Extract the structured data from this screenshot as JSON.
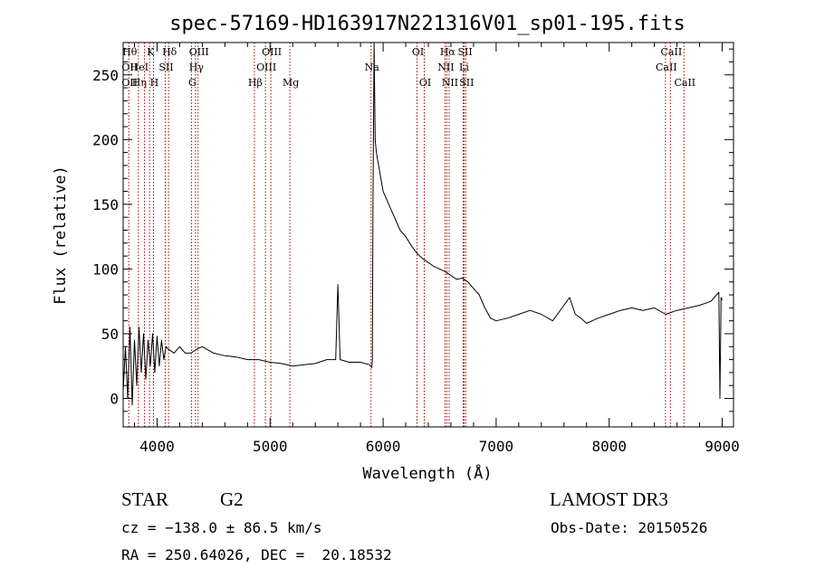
{
  "chart_data": {
    "type": "line",
    "title": "spec-57169-HD163917N221316V01_sp01-195.fits",
    "xlabel": "Wavelength (Å)",
    "ylabel": "Flux (relative)",
    "xlim": [
      3700,
      9100
    ],
    "ylim": [
      -22,
      275
    ],
    "xticks": [
      4000,
      5000,
      6000,
      7000,
      8000,
      9000
    ],
    "yticks": [
      0,
      50,
      100,
      150,
      200,
      250
    ],
    "grid": false,
    "line_color": "#000000",
    "marker_color": "#aa0000",
    "series": [
      {
        "x": [
          3700,
          3720,
          3740,
          3760,
          3780,
          3800,
          3820,
          3840,
          3860,
          3880,
          3900,
          3920,
          3940,
          3960,
          3980,
          4000,
          4020,
          4040,
          4060,
          4080,
          4100,
          4150,
          4200,
          4250,
          4300,
          4350,
          4400,
          4500,
          4600,
          4700,
          4800,
          4900,
          5000,
          5100,
          5200,
          5300,
          5400,
          5500,
          5550,
          5580,
          5600,
          5620,
          5700,
          5800,
          5880,
          5900,
          5905,
          5910,
          5920,
          5930,
          5940,
          5950,
          5960,
          5980,
          6000,
          6050,
          6100,
          6150,
          6200,
          6250,
          6300,
          6350,
          6400,
          6450,
          6500,
          6550,
          6600,
          6650,
          6700,
          6750,
          6800,
          6850,
          6900,
          6950,
          7000,
          7100,
          7200,
          7300,
          7400,
          7500,
          7600,
          7650,
          7700,
          7750,
          7800,
          7900,
          8000,
          8100,
          8200,
          8300,
          8400,
          8500,
          8600,
          8700,
          8800,
          8900,
          8950,
          8970,
          8980,
          8990,
          9000
        ],
        "y": [
          5,
          40,
          0,
          55,
          -5,
          45,
          10,
          55,
          20,
          50,
          15,
          45,
          25,
          50,
          20,
          48,
          25,
          45,
          30,
          40,
          38,
          35,
          40,
          35,
          35,
          38,
          40,
          35,
          33,
          32,
          30,
          30,
          28,
          27,
          25,
          26,
          27,
          30,
          30,
          30,
          88,
          30,
          28,
          28,
          26,
          24,
          30,
          140,
          275,
          200,
          190,
          185,
          180,
          170,
          160,
          150,
          140,
          130,
          125,
          118,
          112,
          108,
          105,
          102,
          100,
          98,
          95,
          92,
          93,
          90,
          85,
          80,
          70,
          62,
          60,
          62,
          65,
          68,
          65,
          60,
          72,
          78,
          65,
          62,
          58,
          62,
          65,
          68,
          70,
          68,
          70,
          65,
          68,
          70,
          72,
          75,
          80,
          82,
          0,
          78,
          76
        ]
      }
    ],
    "line_markers": [
      {
        "x": 3750,
        "labels": [
          "Hθ",
          "OII",
          "OII"
        ],
        "rows": [
          0,
          1,
          2
        ]
      },
      {
        "x": 3835,
        "labels": [
          "Hη",
          "HeI"
        ],
        "rows": [
          2,
          1
        ]
      },
      {
        "x": 3889,
        "labels": [],
        "rows": []
      },
      {
        "x": 3934,
        "labels": [
          "K"
        ],
        "rows": [
          0
        ]
      },
      {
        "x": 3968,
        "labels": [
          "H"
        ],
        "rows": [
          2
        ]
      },
      {
        "x": 4072,
        "labels": [
          "SII"
        ],
        "rows": [
          1
        ]
      },
      {
        "x": 4102,
        "labels": [
          "Hδ"
        ],
        "rows": [
          0
        ]
      },
      {
        "x": 4304,
        "labels": [
          "G"
        ],
        "rows": [
          2
        ]
      },
      {
        "x": 4340,
        "labels": [
          "Hγ"
        ],
        "rows": [
          1
        ]
      },
      {
        "x": 4363,
        "labels": [
          "OIII"
        ],
        "rows": [
          0
        ]
      },
      {
        "x": 4861,
        "labels": [
          "Hβ"
        ],
        "rows": [
          2
        ]
      },
      {
        "x": 4959,
        "labels": [
          "OIII"
        ],
        "rows": [
          1
        ]
      },
      {
        "x": 5007,
        "labels": [
          "OIII"
        ],
        "rows": [
          0
        ]
      },
      {
        "x": 5175,
        "labels": [
          "Mg"
        ],
        "rows": [
          2
        ]
      },
      {
        "x": 5893,
        "labels": [
          "Na"
        ],
        "rows": [
          1
        ]
      },
      {
        "x": 6300,
        "labels": [
          "OI"
        ],
        "rows": [
          0
        ]
      },
      {
        "x": 6364,
        "labels": [
          "OI"
        ],
        "rows": [
          2
        ]
      },
      {
        "x": 6548,
        "labels": [
          "NII"
        ],
        "rows": [
          1
        ]
      },
      {
        "x": 6563,
        "labels": [
          "Hα"
        ],
        "rows": [
          0
        ]
      },
      {
        "x": 6584,
        "labels": [
          "NII"
        ],
        "rows": [
          2
        ]
      },
      {
        "x": 6708,
        "labels": [
          "Li"
        ],
        "rows": [
          1
        ]
      },
      {
        "x": 6717,
        "labels": [
          "SII"
        ],
        "rows": [
          0
        ]
      },
      {
        "x": 6731,
        "labels": [
          "SII"
        ],
        "rows": [
          2
        ]
      },
      {
        "x": 8498,
        "labels": [
          "CaII"
        ],
        "rows": [
          1
        ]
      },
      {
        "x": 8542,
        "labels": [
          "CaII"
        ],
        "rows": [
          0
        ]
      },
      {
        "x": 8662,
        "labels": [
          "CaII"
        ],
        "rows": [
          2
        ]
      }
    ]
  },
  "info": {
    "object_class": "STAR",
    "subclass": "G2",
    "survey": "LAMOST DR3",
    "cz": "cz = −138.0 ± 86.5 km/s",
    "obs_date": "Obs-Date: 20150526",
    "coords": "RA = 250.64026, DEC =  20.18532"
  }
}
